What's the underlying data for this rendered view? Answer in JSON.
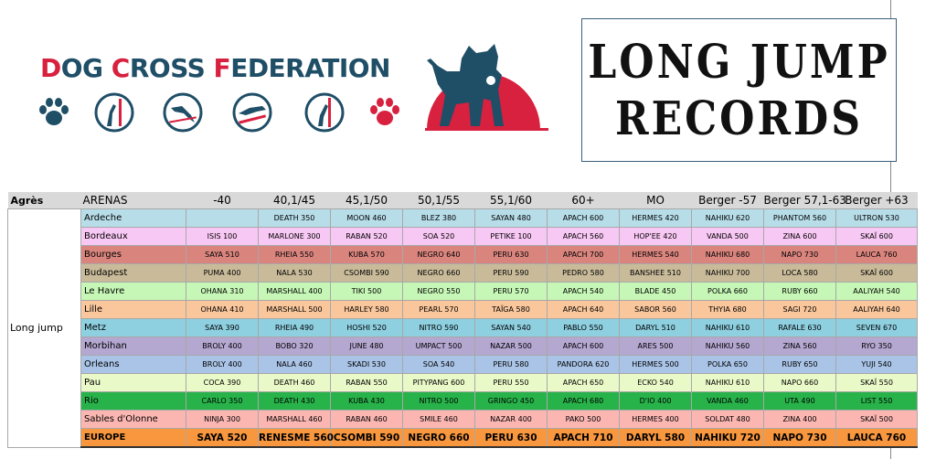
{
  "header": {
    "federation": {
      "p1": "D",
      "p2": "OG ",
      "p3": "C",
      "p4": "ROSS ",
      "p5": "F",
      "p6": "EDERATION"
    },
    "title_line1": "LONG JUMP",
    "title_line2": "RECORDS",
    "icons": [
      "paw-icon",
      "pole-jump-icon",
      "dog-jump-icon",
      "long-jump-icon",
      "climb-icon",
      "paw-icon"
    ],
    "colors": {
      "navy": "#1f4e67",
      "red": "#d8203f"
    }
  },
  "table": {
    "columns": [
      "Agrès",
      "ARENAS",
      "-40",
      "40,1/45",
      "45,1/50",
      "50,1/55",
      "55,1/60",
      "60+",
      "MO",
      "Berger -57",
      "Berger 57,1-63",
      "Berger +63"
    ],
    "group_label": "Long jump",
    "rows": [
      {
        "arena": "Ardeche",
        "bg": "#b7dde8",
        "cells": [
          "",
          "DEATH 350",
          "MOON 460",
          "BLEZ 380",
          "SAYAN 480",
          "APACH 600",
          "HERMES 420",
          "NAHIKU 620",
          "PHANTOM 560",
          "ULTRON 530"
        ]
      },
      {
        "arena": "Bordeaux",
        "bg": "#f8c8f4",
        "cells": [
          "ISIS 100",
          "MARLONE 300",
          "RABAN 520",
          "SOA 520",
          "PETIKE 100",
          "APACH 560",
          "HOP'EE 420",
          "VANDA 500",
          "ZINA 600",
          "SKAÏ 600"
        ]
      },
      {
        "arena": "Bourges",
        "bg": "#d9857e",
        "cells": [
          "SAYA 510",
          "RHEIA 550",
          "KUBA 570",
          "NEGRO 640",
          "PERU 630",
          "APACH 700",
          "HERMES 540",
          "NAHIKU 680",
          "NAPO 730",
          "LAUCA 760"
        ]
      },
      {
        "arena": "Budapest",
        "bg": "#c9bb9a",
        "cells": [
          "PUMA 400",
          "NALA 530",
          "CSOMBI 590",
          "NEGRO 660",
          "PERU 590",
          "PEDRO 580",
          "BANSHEE 510",
          "NAHIKU 700",
          "LOCA 580",
          "SKAÏ 600"
        ]
      },
      {
        "arena": "Le Havre",
        "bg": "#c6f7b6",
        "cells": [
          "OHANA 310",
          "MARSHALL 400",
          "TIKI 500",
          "NEGRO 550",
          "PERU 570",
          "APACH 540",
          "BLADE 450",
          "POLKA 660",
          "RUBY 660",
          "AALIYAH 540"
        ]
      },
      {
        "arena": "Lille",
        "bg": "#fac79c",
        "cells": [
          "OHANA 410",
          "MARSHALL 500",
          "HARLEY 580",
          "PEARL 570",
          "TAÏGA 580",
          "APACH 640",
          "SABOR 560",
          "THYIA 680",
          "SAGI 720",
          "AALIYAH 640"
        ]
      },
      {
        "arena": "Metz",
        "bg": "#8ecfe0",
        "cells": [
          "SAYA 390",
          "RHEIA 490",
          "HOSHI 520",
          "NITRO 590",
          "SAYAN 540",
          "PABLO 550",
          "DARYL 510",
          "NAHIKU 610",
          "RAFALE 630",
          "SEVEN 670"
        ]
      },
      {
        "arena": "Morbihan",
        "bg": "#b4a7d0",
        "cells": [
          "BROLY 400",
          "BOBO 320",
          "JUNE 480",
          "UMPACT 500",
          "NAZAR 500",
          "APACH 600",
          "ARES 500",
          "NAHIKU 560",
          "ZINA 560",
          "RYO 350"
        ]
      },
      {
        "arena": "Orleans",
        "bg": "#a9c4e6",
        "cells": [
          "BROLY 400",
          "NALA 460",
          "SKADI 530",
          "SOA 540",
          "PERU 580",
          "PANDORA 620",
          "HERMES 500",
          "POLKA 650",
          "RUBY 650",
          "YUJI 540"
        ]
      },
      {
        "arena": "Pau",
        "bg": "#eaf9c8",
        "cells": [
          "COCA 390",
          "DEATH 460",
          "RABAN 550",
          "PITYPANG 600",
          "PERU 550",
          "APACH 650",
          "ECKO 540",
          "NAHIKU 610",
          "NAPO 660",
          "SKAÏ 550"
        ]
      },
      {
        "arena": "Rio",
        "bg": "#28b34a",
        "cells": [
          "CARLO 350",
          "DEATH 430",
          "KUBA 430",
          "NITRO 500",
          "GRINGO 450",
          "APACH 680",
          "D'IO 400",
          "VANDA 460",
          "UTA 490",
          "LIST 550"
        ]
      },
      {
        "arena": "Sables d'Olonne",
        "bg": "#fbb6b2",
        "cells": [
          "NINJA 300",
          "MARSHALL 460",
          "RABAN 460",
          "SMILE 460",
          "NAZAR 400",
          "PAKO 500",
          "HERMES 400",
          "SOLDAT 480",
          "ZINA 400",
          "SKAÏ 500"
        ]
      }
    ],
    "total": {
      "arena": "EUROPE",
      "bg": "#f9973e",
      "cells": [
        "SAYA 520",
        "RENESME 560",
        "CSOMBI 590",
        "NEGRO 660",
        "PERU 630",
        "APACH 710",
        "DARYL 580",
        "NAHIKU 720",
        "NAPO 730",
        "LAUCA 760"
      ]
    }
  }
}
